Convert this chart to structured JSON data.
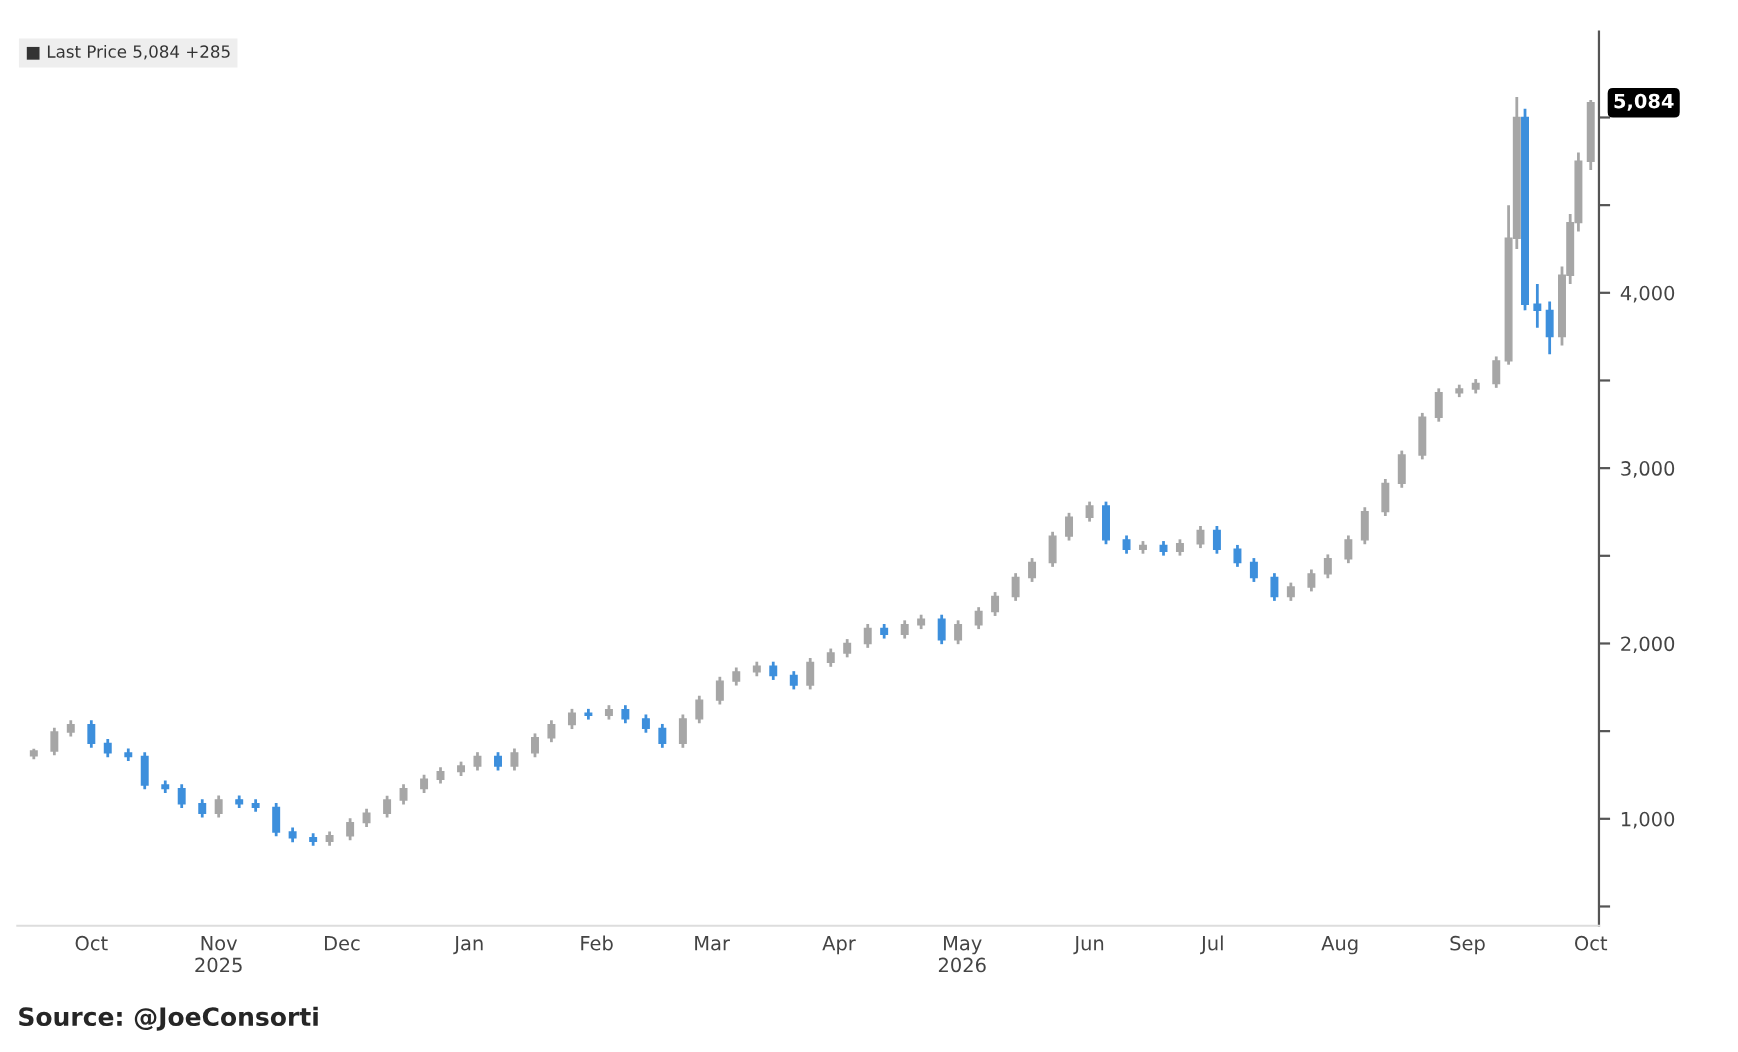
{
  "chart_data": {
    "type": "candlestick",
    "x": [
      "2025-09-17",
      "2025-09-22",
      "2025-09-26",
      "2025-10-01",
      "2025-10-05",
      "2025-10-10",
      "2025-10-14",
      "2025-10-19",
      "2025-10-23",
      "2025-10-28",
      "2025-11-01",
      "2025-11-06",
      "2025-11-10",
      "2025-11-15",
      "2025-11-19",
      "2025-11-24",
      "2025-11-28",
      "2025-12-03",
      "2025-12-07",
      "2025-12-12",
      "2025-12-16",
      "2025-12-21",
      "2025-12-25",
      "2025-12-30",
      "2026-01-03",
      "2026-01-08",
      "2026-01-12",
      "2026-01-17",
      "2026-01-21",
      "2026-01-26",
      "2026-01-30",
      "2026-02-04",
      "2026-02-08",
      "2026-02-13",
      "2026-02-17",
      "2026-02-22",
      "2026-02-26",
      "2026-03-03",
      "2026-03-07",
      "2026-03-12",
      "2026-03-16",
      "2026-03-21",
      "2026-03-25",
      "2026-03-30",
      "2026-04-03",
      "2026-04-08",
      "2026-04-12",
      "2026-04-17",
      "2026-04-21",
      "2026-04-26",
      "2026-04-30",
      "2026-05-05",
      "2026-05-09",
      "2026-05-14",
      "2026-05-18",
      "2026-05-23",
      "2026-05-27",
      "2026-06-01",
      "2026-06-05",
      "2026-06-10",
      "2026-06-14",
      "2026-06-19",
      "2026-06-23",
      "2026-06-28",
      "2026-07-02",
      "2026-07-07",
      "2026-07-11",
      "2026-07-16",
      "2026-07-20",
      "2026-07-25",
      "2026-07-29",
      "2026-08-03",
      "2026-08-07",
      "2026-08-12",
      "2026-08-16",
      "2026-08-21",
      "2026-08-25",
      "2026-08-30",
      "2026-09-03",
      "2026-09-08",
      "2026-09-11",
      "2026-09-13",
      "2026-09-15",
      "2026-09-18",
      "2026-09-21",
      "2026-09-24",
      "2026-09-26",
      "2026-09-28",
      "2026-10-01"
    ],
    "ohlc": [
      [
        1360,
        1400,
        1340,
        1387
      ],
      [
        1387,
        1520,
        1362,
        1495
      ],
      [
        1495,
        1562,
        1470,
        1537
      ],
      [
        1537,
        1562,
        1405,
        1430
      ],
      [
        1430,
        1455,
        1351,
        1376
      ],
      [
        1376,
        1401,
        1330,
        1355
      ],
      [
        1355,
        1380,
        1168,
        1193
      ],
      [
        1193,
        1218,
        1147,
        1172
      ],
      [
        1172,
        1197,
        1061,
        1086
      ],
      [
        1086,
        1111,
        1007,
        1032
      ],
      [
        1032,
        1133,
        1007,
        1108
      ],
      [
        1108,
        1133,
        1061,
        1086
      ],
      [
        1086,
        1111,
        1040,
        1065
      ],
      [
        1065,
        1090,
        900,
        925
      ],
      [
        925,
        950,
        867,
        892
      ],
      [
        892,
        917,
        846,
        871
      ],
      [
        871,
        928,
        846,
        903
      ],
      [
        903,
        1003,
        878,
        978
      ],
      [
        978,
        1057,
        953,
        1032
      ],
      [
        1032,
        1132,
        1007,
        1107
      ],
      [
        1107,
        1197,
        1082,
        1172
      ],
      [
        1172,
        1251,
        1147,
        1226
      ],
      [
        1226,
        1294,
        1201,
        1269
      ],
      [
        1269,
        1326,
        1244,
        1301
      ],
      [
        1301,
        1380,
        1276,
        1355
      ],
      [
        1355,
        1380,
        1276,
        1301
      ],
      [
        1301,
        1401,
        1276,
        1376
      ],
      [
        1376,
        1487,
        1351,
        1462
      ],
      [
        1462,
        1562,
        1437,
        1537
      ],
      [
        1537,
        1627,
        1512,
        1602
      ],
      [
        1602,
        1627,
        1566,
        1591
      ],
      [
        1591,
        1648,
        1566,
        1623
      ],
      [
        1623,
        1648,
        1545,
        1570
      ],
      [
        1570,
        1595,
        1491,
        1516
      ],
      [
        1516,
        1541,
        1405,
        1430
      ],
      [
        1430,
        1595,
        1405,
        1570
      ],
      [
        1570,
        1702,
        1545,
        1677
      ],
      [
        1677,
        1810,
        1652,
        1785
      ],
      [
        1785,
        1863,
        1760,
        1838
      ],
      [
        1838,
        1896,
        1813,
        1871
      ],
      [
        1871,
        1896,
        1792,
        1817
      ],
      [
        1817,
        1842,
        1738,
        1763
      ],
      [
        1763,
        1917,
        1738,
        1892
      ],
      [
        1892,
        1971,
        1867,
        1946
      ],
      [
        1946,
        2025,
        1921,
        2000
      ],
      [
        2000,
        2111,
        1975,
        2086
      ],
      [
        2086,
        2111,
        2028,
        2053
      ],
      [
        2053,
        2132,
        2028,
        2107
      ],
      [
        2107,
        2164,
        2082,
        2139
      ],
      [
        2139,
        2164,
        1996,
        2021
      ],
      [
        2021,
        2132,
        1996,
        2107
      ],
      [
        2107,
        2207,
        2082,
        2182
      ],
      [
        2182,
        2293,
        2157,
        2268
      ],
      [
        2268,
        2401,
        2243,
        2376
      ],
      [
        2376,
        2487,
        2351,
        2462
      ],
      [
        2462,
        2637,
        2437,
        2612
      ],
      [
        2612,
        2745,
        2587,
        2720
      ],
      [
        2720,
        2809,
        2695,
        2784
      ],
      [
        2784,
        2809,
        2566,
        2591
      ],
      [
        2591,
        2616,
        2512,
        2537
      ],
      [
        2537,
        2584,
        2512,
        2559
      ],
      [
        2559,
        2584,
        2501,
        2526
      ],
      [
        2526,
        2594,
        2501,
        2569
      ],
      [
        2569,
        2670,
        2544,
        2645
      ],
      [
        2645,
        2670,
        2512,
        2537
      ],
      [
        2537,
        2562,
        2437,
        2462
      ],
      [
        2462,
        2487,
        2351,
        2376
      ],
      [
        2376,
        2401,
        2243,
        2268
      ],
      [
        2268,
        2347,
        2243,
        2322
      ],
      [
        2322,
        2422,
        2297,
        2397
      ],
      [
        2397,
        2508,
        2372,
        2483
      ],
      [
        2483,
        2616,
        2458,
        2591
      ],
      [
        2591,
        2777,
        2566,
        2752
      ],
      [
        2752,
        2938,
        2727,
        2913
      ],
      [
        2913,
        3100,
        2888,
        3075
      ],
      [
        3075,
        3315,
        3050,
        3290
      ],
      [
        3290,
        3455,
        3265,
        3430
      ],
      [
        3430,
        3476,
        3405,
        3451
      ],
      [
        3451,
        3508,
        3426,
        3483
      ],
      [
        3483,
        3637,
        3458,
        3612
      ],
      [
        3612,
        4500,
        3590,
        4311
      ],
      [
        4311,
        5117,
        4250,
        5000
      ],
      [
        5000,
        5050,
        3900,
        3935
      ],
      [
        3935,
        4050,
        3800,
        3900
      ],
      [
        3900,
        3950,
        3650,
        3750
      ],
      [
        3750,
        4150,
        3700,
        4100
      ],
      [
        4100,
        4450,
        4050,
        4400
      ],
      [
        4400,
        4800,
        4350,
        4750
      ],
      [
        4750,
        5100,
        4700,
        5084
      ]
    ],
    "colors": [
      "#a6a6a6",
      "#a6a6a6",
      "#a6a6a6",
      "#3d8fdc",
      "#3d8fdc",
      "#3d8fdc",
      "#3d8fdc",
      "#3d8fdc",
      "#3d8fdc",
      "#3d8fdc",
      "#a6a6a6",
      "#3d8fdc",
      "#3d8fdc",
      "#3d8fdc",
      "#3d8fdc",
      "#3d8fdc",
      "#a6a6a6",
      "#a6a6a6",
      "#a6a6a6",
      "#a6a6a6",
      "#a6a6a6",
      "#a6a6a6",
      "#a6a6a6",
      "#a6a6a6",
      "#a6a6a6",
      "#3d8fdc",
      "#a6a6a6",
      "#a6a6a6",
      "#a6a6a6",
      "#a6a6a6",
      "#3d8fdc",
      "#a6a6a6",
      "#3d8fdc",
      "#3d8fdc",
      "#3d8fdc",
      "#a6a6a6",
      "#a6a6a6",
      "#a6a6a6",
      "#a6a6a6",
      "#a6a6a6",
      "#3d8fdc",
      "#3d8fdc",
      "#a6a6a6",
      "#a6a6a6",
      "#a6a6a6",
      "#a6a6a6",
      "#3d8fdc",
      "#a6a6a6",
      "#a6a6a6",
      "#3d8fdc",
      "#a6a6a6",
      "#a6a6a6",
      "#a6a6a6",
      "#a6a6a6",
      "#a6a6a6",
      "#a6a6a6",
      "#a6a6a6",
      "#a6a6a6",
      "#3d8fdc",
      "#3d8fdc",
      "#a6a6a6",
      "#3d8fdc",
      "#a6a6a6",
      "#a6a6a6",
      "#3d8fdc",
      "#3d8fdc",
      "#3d8fdc",
      "#3d8fdc",
      "#a6a6a6",
      "#a6a6a6",
      "#a6a6a6",
      "#a6a6a6",
      "#a6a6a6",
      "#a6a6a6",
      "#a6a6a6",
      "#a6a6a6",
      "#a6a6a6",
      "#a6a6a6",
      "#a6a6a6",
      "#a6a6a6",
      "#a6a6a6",
      "#a6a6a6",
      "#3d8fdc",
      "#3d8fdc",
      "#3d8fdc",
      "#a6a6a6",
      "#a6a6a6",
      "#a6a6a6",
      "#a6a6a6"
    ],
    "xlim": [
      "2025-09-13",
      "2026-10-03"
    ],
    "xticks": [
      {
        "value": "2025-10-01",
        "label": "Oct"
      },
      {
        "value": "2025-11-01",
        "label": "Nov\n2025"
      },
      {
        "value": "2025-12-01",
        "label": "Dec"
      },
      {
        "value": "2026-01-01",
        "label": "Jan"
      },
      {
        "value": "2026-02-01",
        "label": "Feb"
      },
      {
        "value": "2026-03-01",
        "label": "Mar"
      },
      {
        "value": "2026-04-01",
        "label": "Apr"
      },
      {
        "value": "2026-05-01",
        "label": "May\n2026"
      },
      {
        "value": "2026-06-01",
        "label": "Jun"
      },
      {
        "value": "2026-07-01",
        "label": "Jul"
      },
      {
        "value": "2026-08-01",
        "label": "Aug"
      },
      {
        "value": "2026-09-01",
        "label": "Sep"
      },
      {
        "value": "2026-10-01",
        "label": "Oct"
      }
    ],
    "ylim": [
      390,
      5490
    ],
    "yticks": [
      {
        "value": 500,
        "label": null
      },
      {
        "value": 1000,
        "label": "1,000"
      },
      {
        "value": 1500,
        "label": null
      },
      {
        "value": 2000,
        "label": "2,000"
      },
      {
        "value": 2500,
        "label": null
      },
      {
        "value": 3000,
        "label": "3,000"
      },
      {
        "value": 3500,
        "label": null
      },
      {
        "value": 4000,
        "label": "4,000"
      },
      {
        "value": 4500,
        "label": null
      },
      {
        "value": 5000,
        "label": null
      }
    ],
    "annotations": [
      {
        "text": "5,084",
        "x": "2026-10-01",
        "y": 5084
      },
      "■ Last Price 5,084 +285",
      "Source: @JoeConsorti"
    ],
    "grid": false
  }
}
